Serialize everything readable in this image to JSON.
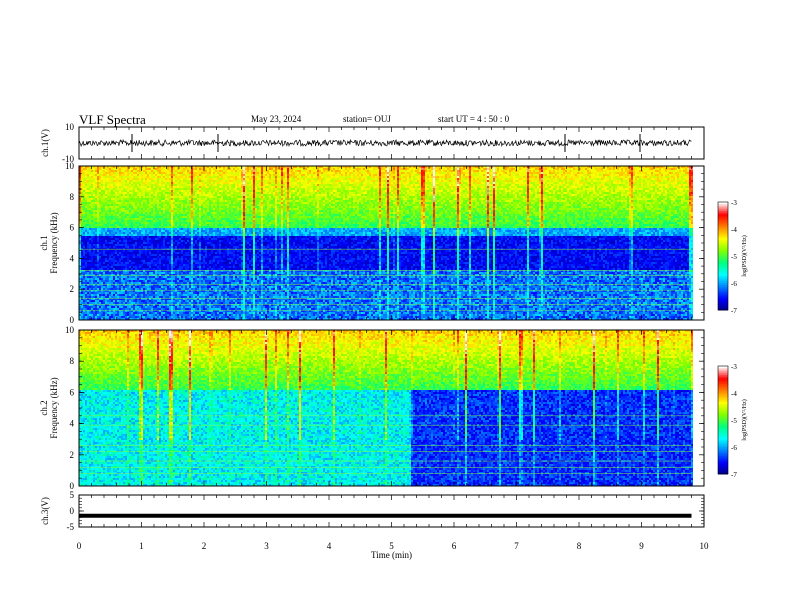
{
  "header": {
    "title": "VLF Spectra",
    "date": "May 23, 2024",
    "station": "station= OUJ",
    "start": "start  UT =   4 : 50 : 0"
  },
  "chart_data": [
    {
      "type": "line",
      "panel": "ch1-waveform",
      "ylabel": "ch.1(V)",
      "ylim": [
        -10,
        10
      ],
      "y_ticks": [
        "10",
        "-10"
      ],
      "xlim": [
        0,
        10
      ],
      "series": [
        {
          "values_description_level": 0.0,
          "amplitude_range": [
            -2,
            2
          ]
        }
      ],
      "color": "#000000"
    },
    {
      "type": "heatmap",
      "panel": "ch1-spectrogram",
      "ylabel": "ch.1\nFrequency  (kHz)",
      "ylim": [
        0,
        10
      ],
      "y_ticks": [
        "0",
        "2",
        "4",
        "6",
        "8",
        "10"
      ],
      "xlim": [
        0,
        10
      ],
      "data_end_min": 9.8,
      "colorbar": {
        "label": "log(PSD)(V²/Hz)",
        "range": [
          -7,
          -3
        ],
        "ticks": [
          "-3",
          "-4",
          "-5",
          "-6",
          "-7"
        ]
      },
      "colormap": [
        "#000080",
        "#0000ff",
        "#0080ff",
        "#00ffff",
        "#00ff80",
        "#80ff00",
        "#ffff00",
        "#ff8000",
        "#ff0000",
        "#ffffff"
      ],
      "noise_floor_khz": 5.5
    },
    {
      "type": "heatmap",
      "panel": "ch2-spectrogram",
      "ylabel": "ch.2\nFrequency  (kHz)",
      "ylim": [
        0,
        10
      ],
      "y_ticks": [
        "0",
        "2",
        "4",
        "6",
        "8",
        "10"
      ],
      "xlim": [
        0,
        10
      ],
      "data_end_min": 9.8,
      "regime_change_min": 5.3,
      "colorbar": {
        "label": "log(PSD)(V²/Hz)",
        "range": [
          -7,
          -3
        ],
        "ticks": [
          "-3",
          "-4",
          "-5",
          "-6",
          "-7"
        ]
      }
    },
    {
      "type": "line",
      "panel": "ch3-waveform",
      "ylabel": "ch.3(V)",
      "ylim": [
        -5,
        5
      ],
      "y_ticks": [
        "5",
        "0",
        "-5"
      ],
      "xlim": [
        0,
        10
      ],
      "series": [
        {
          "level": -1.5
        }
      ],
      "color": "#000000"
    }
  ],
  "xaxis": {
    "label": "Time  (min)",
    "ticks": [
      "0",
      "1",
      "2",
      "3",
      "4",
      "5",
      "6",
      "7",
      "8",
      "9",
      "10"
    ]
  }
}
